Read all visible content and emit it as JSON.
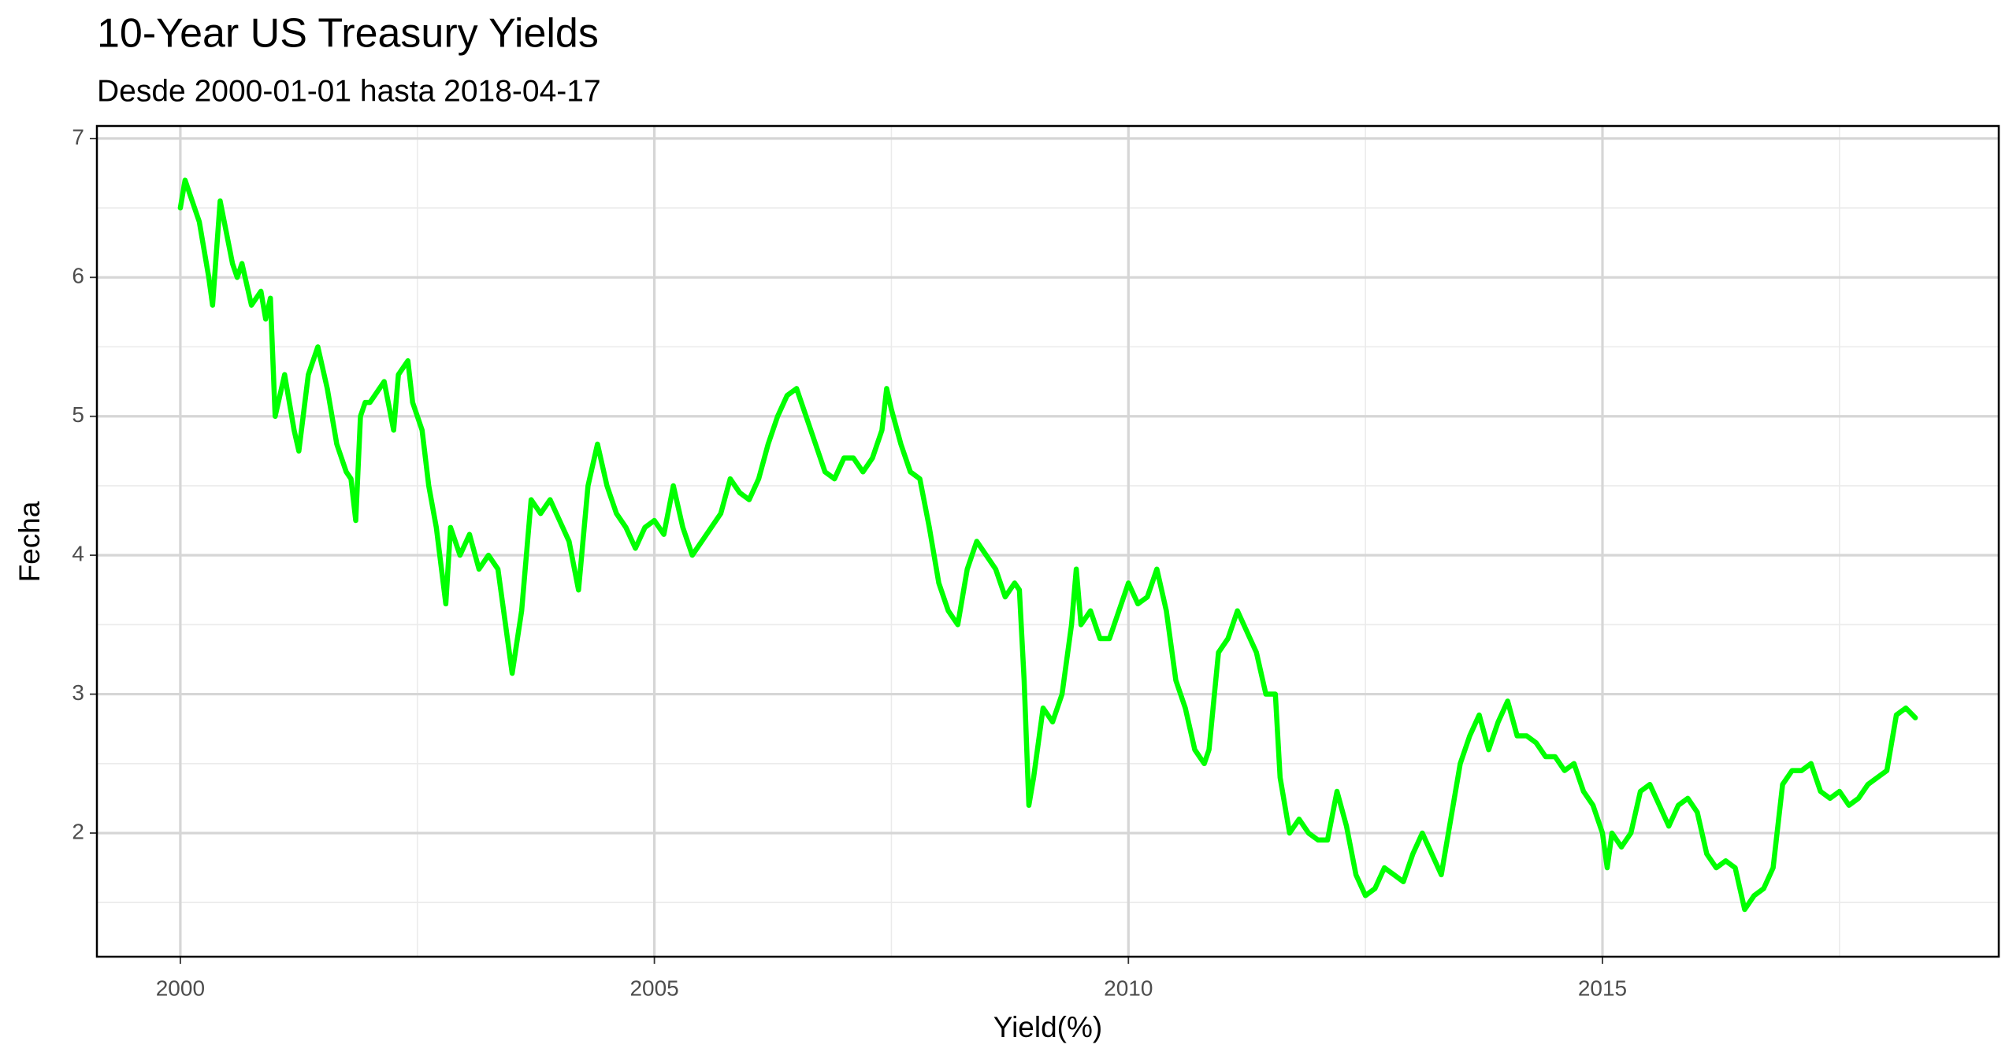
{
  "chart_data": {
    "type": "line",
    "title": "10-Year US Treasury Yields",
    "subtitle": "Desde 2000-01-01 hasta 2018-04-17",
    "x_label": "Yield(%)",
    "y_label": "Fecha",
    "color": "#00ff00",
    "xlim": [
      1999.12,
      2019.18
    ],
    "ylim": [
      1.11,
      7.09
    ],
    "xticks": [
      2000,
      2005,
      2010,
      2015
    ],
    "yticks": [
      2,
      3,
      4,
      5,
      6,
      7
    ],
    "x_minor_grid": [
      2002.5,
      2007.5,
      2012.5,
      2017.5
    ],
    "y_minor_grid": [
      1.5,
      2.5,
      3.5,
      4.5,
      5.5,
      6.5
    ],
    "grid": true,
    "x": [
      2000.0,
      2000.05,
      2000.1,
      2000.2,
      2000.3,
      2000.34,
      2000.42,
      2000.55,
      2000.6,
      2000.65,
      2000.75,
      2000.85,
      2000.9,
      2000.95,
      2001.0,
      2001.1,
      2001.2,
      2001.25,
      2001.35,
      2001.45,
      2001.55,
      2001.65,
      2001.75,
      2001.8,
      2001.85,
      2001.9,
      2001.95,
      2002.0,
      2002.15,
      2002.25,
      2002.3,
      2002.4,
      2002.45,
      2002.55,
      2002.62,
      2002.7,
      2002.8,
      2002.85,
      2002.95,
      2003.05,
      2003.15,
      2003.25,
      2003.35,
      2003.45,
      2003.5,
      2003.6,
      2003.7,
      2003.8,
      2003.9,
      2004.0,
      2004.1,
      2004.2,
      2004.3,
      2004.4,
      2004.5,
      2004.6,
      2004.7,
      2004.8,
      2004.9,
      2005.0,
      2005.1,
      2005.2,
      2005.3,
      2005.4,
      2005.5,
      2005.6,
      2005.7,
      2005.8,
      2005.9,
      2006.0,
      2006.1,
      2006.2,
      2006.3,
      2006.4,
      2006.5,
      2006.6,
      2006.7,
      2006.8,
      2006.9,
      2007.0,
      2007.1,
      2007.2,
      2007.3,
      2007.4,
      2007.45,
      2007.5,
      2007.6,
      2007.7,
      2007.8,
      2007.9,
      2008.0,
      2008.1,
      2008.2,
      2008.3,
      2008.4,
      2008.5,
      2008.6,
      2008.7,
      2008.8,
      2008.85,
      2008.9,
      2008.95,
      2009.0,
      2009.1,
      2009.2,
      2009.3,
      2009.4,
      2009.45,
      2009.5,
      2009.6,
      2009.7,
      2009.8,
      2009.9,
      2010.0,
      2010.1,
      2010.2,
      2010.3,
      2010.4,
      2010.5,
      2010.6,
      2010.7,
      2010.8,
      2010.85,
      2010.95,
      2011.05,
      2011.15,
      2011.25,
      2011.35,
      2011.45,
      2011.55,
      2011.6,
      2011.7,
      2011.8,
      2011.9,
      2012.0,
      2012.1,
      2012.2,
      2012.3,
      2012.4,
      2012.5,
      2012.6,
      2012.7,
      2012.8,
      2012.9,
      2013.0,
      2013.1,
      2013.2,
      2013.3,
      2013.4,
      2013.5,
      2013.6,
      2013.7,
      2013.8,
      2013.9,
      2014.0,
      2014.1,
      2014.2,
      2014.3,
      2014.4,
      2014.5,
      2014.6,
      2014.7,
      2014.8,
      2014.9,
      2015.0,
      2015.05,
      2015.1,
      2015.2,
      2015.3,
      2015.4,
      2015.5,
      2015.6,
      2015.7,
      2015.8,
      2015.9,
      2016.0,
      2016.1,
      2016.2,
      2016.3,
      2016.4,
      2016.5,
      2016.6,
      2016.7,
      2016.8,
      2016.9,
      2017.0,
      2017.1,
      2017.2,
      2017.3,
      2017.4,
      2017.5,
      2017.6,
      2017.7,
      2017.8,
      2017.9,
      2018.0,
      2018.1,
      2018.2,
      2018.3
    ],
    "values": [
      6.5,
      6.7,
      6.6,
      6.4,
      6.0,
      5.8,
      6.55,
      6.1,
      6.0,
      6.1,
      5.8,
      5.9,
      5.7,
      5.85,
      5.0,
      5.3,
      4.9,
      4.75,
      5.3,
      5.5,
      5.2,
      4.8,
      4.6,
      4.55,
      4.25,
      5.0,
      5.1,
      5.1,
      5.25,
      4.9,
      5.3,
      5.4,
      5.1,
      4.9,
      4.5,
      4.2,
      3.65,
      4.2,
      4.0,
      4.15,
      3.9,
      4.0,
      3.9,
      3.4,
      3.15,
      3.6,
      4.4,
      4.3,
      4.4,
      4.25,
      4.1,
      3.75,
      4.5,
      4.8,
      4.5,
      4.3,
      4.2,
      4.05,
      4.2,
      4.25,
      4.15,
      4.5,
      4.2,
      4.0,
      4.1,
      4.2,
      4.3,
      4.55,
      4.45,
      4.4,
      4.55,
      4.8,
      5.0,
      5.15,
      5.2,
      5.0,
      4.8,
      4.6,
      4.55,
      4.7,
      4.7,
      4.6,
      4.7,
      4.9,
      5.2,
      5.05,
      4.8,
      4.6,
      4.55,
      4.2,
      3.8,
      3.6,
      3.5,
      3.9,
      4.1,
      4.0,
      3.9,
      3.7,
      3.8,
      3.75,
      3.1,
      2.2,
      2.4,
      2.9,
      2.8,
      3.0,
      3.5,
      3.9,
      3.5,
      3.6,
      3.4,
      3.4,
      3.6,
      3.8,
      3.65,
      3.7,
      3.9,
      3.6,
      3.1,
      2.9,
      2.6,
      2.5,
      2.6,
      3.3,
      3.4,
      3.6,
      3.45,
      3.3,
      3.0,
      3.0,
      2.4,
      2.0,
      2.1,
      2.0,
      1.95,
      1.95,
      2.3,
      2.05,
      1.7,
      1.55,
      1.6,
      1.75,
      1.7,
      1.65,
      1.85,
      2.0,
      1.85,
      1.7,
      2.1,
      2.5,
      2.7,
      2.85,
      2.6,
      2.8,
      2.95,
      2.7,
      2.7,
      2.65,
      2.55,
      2.55,
      2.45,
      2.5,
      2.3,
      2.2,
      2.0,
      1.75,
      2.0,
      1.9,
      2.0,
      2.3,
      2.35,
      2.2,
      2.05,
      2.2,
      2.25,
      2.15,
      1.85,
      1.75,
      1.8,
      1.75,
      1.45,
      1.55,
      1.6,
      1.75,
      2.35,
      2.45,
      2.45,
      2.5,
      2.3,
      2.25,
      2.3,
      2.2,
      2.25,
      2.35,
      2.4,
      2.45,
      2.85,
      2.9,
      2.83
    ]
  }
}
